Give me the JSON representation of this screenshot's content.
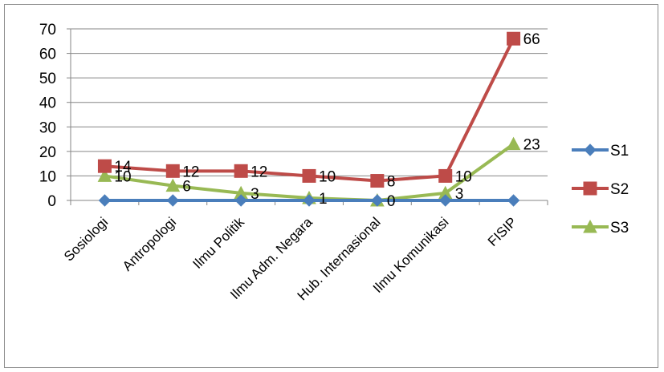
{
  "chart_data": {
    "type": "line",
    "categories": [
      "Sosiologi",
      "Antropologi",
      "Ilmu Politik",
      "Ilmu Adm. Negara",
      "Hub. Internasional",
      "Ilmu Komunikasi",
      "FISIP"
    ],
    "series": [
      {
        "name": "S1",
        "values": [
          0,
          0,
          0,
          0,
          0,
          0,
          0
        ],
        "color": "#4a7ebb",
        "marker": "diamond",
        "show_labels": false
      },
      {
        "name": "S2",
        "values": [
          14,
          12,
          12,
          10,
          8,
          10,
          66
        ],
        "color": "#be4b48",
        "marker": "square",
        "show_labels": true
      },
      {
        "name": "S3",
        "values": [
          10,
          6,
          3,
          1,
          0,
          3,
          23
        ],
        "color": "#98b954",
        "marker": "triangle",
        "show_labels": true
      }
    ],
    "yticks": [
      0,
      10,
      20,
      30,
      40,
      50,
      60,
      70
    ],
    "ylim": [
      0,
      70
    ],
    "grid": "horizontal",
    "legend_position": "right",
    "title": "",
    "xlabel": "",
    "ylabel": ""
  }
}
